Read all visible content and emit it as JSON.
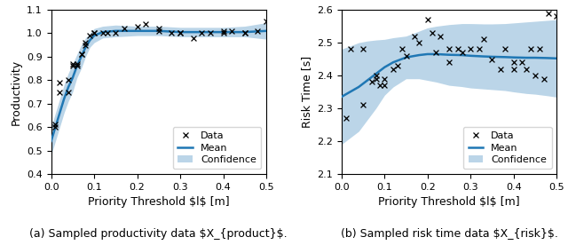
{
  "chart_data": [
    {
      "type": "line",
      "caption": "(a) Sampled productivity data $X_{product}$.",
      "xlabel": "Priority Threshold $l$ [m]",
      "ylabel": "Productivity",
      "xlim": [
        0.0,
        0.5
      ],
      "ylim": [
        0.4,
        1.1
      ],
      "xticks": [
        0.0,
        0.1,
        0.2,
        0.3,
        0.4,
        0.5
      ],
      "yticks": [
        0.4,
        0.5,
        0.6,
        0.7,
        0.8,
        0.9,
        1.0,
        1.1
      ],
      "legend": "lower right",
      "series": [
        {
          "name": "Data",
          "type": "scatter",
          "marker": "x",
          "color": "black",
          "x": [
            0.01,
            0.01,
            0.02,
            0.02,
            0.04,
            0.04,
            0.05,
            0.05,
            0.06,
            0.06,
            0.07,
            0.07,
            0.08,
            0.08,
            0.09,
            0.1,
            0.1,
            0.12,
            0.13,
            0.15,
            0.17,
            0.2,
            0.22,
            0.25,
            0.25,
            0.28,
            0.3,
            0.3,
            0.33,
            0.35,
            0.37,
            0.4,
            0.4,
            0.42,
            0.45,
            0.45,
            0.48,
            0.5
          ],
          "values": [
            0.61,
            0.6,
            0.75,
            0.79,
            0.75,
            0.8,
            0.86,
            0.87,
            0.86,
            0.87,
            0.91,
            0.91,
            0.95,
            0.96,
            0.99,
            1.0,
            1.0,
            1.0,
            1.0,
            1.0,
            1.02,
            1.03,
            1.04,
            1.01,
            1.02,
            1.0,
            1.0,
            1.0,
            0.98,
            1.0,
            1.0,
            1.01,
            1.0,
            1.01,
            1.0,
            1.0,
            1.01,
            1.05
          ]
        },
        {
          "name": "Mean",
          "type": "line",
          "x": [
            0.0,
            0.01,
            0.02,
            0.03,
            0.04,
            0.05,
            0.06,
            0.07,
            0.08,
            0.09,
            0.1,
            0.12,
            0.15,
            0.2,
            0.25,
            0.3,
            0.35,
            0.4,
            0.45,
            0.5
          ],
          "values": [
            0.54,
            0.6,
            0.66,
            0.72,
            0.77,
            0.81,
            0.86,
            0.9,
            0.94,
            0.97,
            0.99,
            1.005,
            1.01,
            1.01,
            1.01,
            1.005,
            1.005,
            1.005,
            1.005,
            1.01
          ]
        },
        {
          "name": "Confidence",
          "type": "band",
          "x": [
            0.0,
            0.01,
            0.02,
            0.03,
            0.04,
            0.05,
            0.06,
            0.07,
            0.08,
            0.09,
            0.1,
            0.12,
            0.15,
            0.2,
            0.25,
            0.3,
            0.35,
            0.4,
            0.45,
            0.5
          ],
          "upper": [
            0.6,
            0.66,
            0.72,
            0.78,
            0.83,
            0.87,
            0.91,
            0.95,
            0.98,
            1.0,
            1.02,
            1.03,
            1.035,
            1.03,
            1.03,
            1.025,
            1.025,
            1.025,
            1.03,
            1.045
          ],
          "lower": [
            0.48,
            0.54,
            0.6,
            0.66,
            0.71,
            0.75,
            0.81,
            0.85,
            0.9,
            0.94,
            0.96,
            0.98,
            0.985,
            0.99,
            0.99,
            0.985,
            0.985,
            0.985,
            0.985,
            0.975
          ]
        }
      ]
    },
    {
      "type": "line",
      "caption": "(b) Sampled risk time data $X_{risk}$.",
      "xlabel": "Priority Threshold $l$ [m]",
      "ylabel": "Risk Time [s]",
      "xlim": [
        0.0,
        0.5
      ],
      "ylim": [
        2.1,
        2.6
      ],
      "xticks": [
        0.0,
        0.1,
        0.2,
        0.3,
        0.4,
        0.5
      ],
      "yticks": [
        2.1,
        2.2,
        2.3,
        2.4,
        2.5,
        2.6
      ],
      "legend": "lower right",
      "series": [
        {
          "name": "Data",
          "type": "scatter",
          "marker": "x",
          "color": "black",
          "x": [
            0.01,
            0.02,
            0.05,
            0.05,
            0.07,
            0.08,
            0.08,
            0.09,
            0.1,
            0.1,
            0.12,
            0.13,
            0.14,
            0.15,
            0.17,
            0.18,
            0.2,
            0.21,
            0.22,
            0.23,
            0.25,
            0.25,
            0.27,
            0.28,
            0.3,
            0.32,
            0.33,
            0.35,
            0.37,
            0.38,
            0.4,
            0.4,
            0.42,
            0.43,
            0.44,
            0.45,
            0.46,
            0.47,
            0.48,
            0.5
          ],
          "values": [
            2.27,
            2.48,
            2.31,
            2.48,
            2.38,
            2.4,
            2.39,
            2.37,
            2.39,
            2.37,
            2.42,
            2.43,
            2.48,
            2.46,
            2.52,
            2.5,
            2.57,
            2.53,
            2.47,
            2.52,
            2.48,
            2.44,
            2.48,
            2.47,
            2.48,
            2.48,
            2.51,
            2.45,
            2.42,
            2.48,
            2.44,
            2.42,
            2.44,
            2.42,
            2.48,
            2.4,
            2.48,
            2.39,
            2.59,
            2.58
          ]
        },
        {
          "name": "Mean",
          "type": "line",
          "x": [
            0.0,
            0.02,
            0.04,
            0.06,
            0.08,
            0.1,
            0.12,
            0.15,
            0.18,
            0.2,
            0.22,
            0.25,
            0.28,
            0.3,
            0.33,
            0.35,
            0.38,
            0.4,
            0.43,
            0.45,
            0.48,
            0.5
          ],
          "values": [
            2.335,
            2.35,
            2.365,
            2.385,
            2.405,
            2.425,
            2.44,
            2.455,
            2.462,
            2.465,
            2.465,
            2.463,
            2.462,
            2.46,
            2.458,
            2.457,
            2.456,
            2.455,
            2.454,
            2.454,
            2.453,
            2.452
          ]
        },
        {
          "name": "Confidence",
          "type": "band",
          "x": [
            0.0,
            0.02,
            0.04,
            0.06,
            0.08,
            0.1,
            0.12,
            0.15,
            0.18,
            0.2,
            0.22,
            0.25,
            0.28,
            0.3,
            0.33,
            0.35,
            0.38,
            0.4,
            0.43,
            0.45,
            0.48,
            0.5
          ],
          "upper": [
            2.48,
            2.49,
            2.5,
            2.505,
            2.508,
            2.51,
            2.515,
            2.52,
            2.535,
            2.545,
            2.55,
            2.555,
            2.558,
            2.558,
            2.557,
            2.557,
            2.558,
            2.56,
            2.563,
            2.565,
            2.568,
            2.57
          ],
          "lower": [
            2.19,
            2.21,
            2.23,
            2.265,
            2.3,
            2.34,
            2.365,
            2.39,
            2.39,
            2.385,
            2.38,
            2.37,
            2.366,
            2.362,
            2.359,
            2.357,
            2.354,
            2.35,
            2.345,
            2.343,
            2.338,
            2.334
          ]
        }
      ]
    }
  ]
}
